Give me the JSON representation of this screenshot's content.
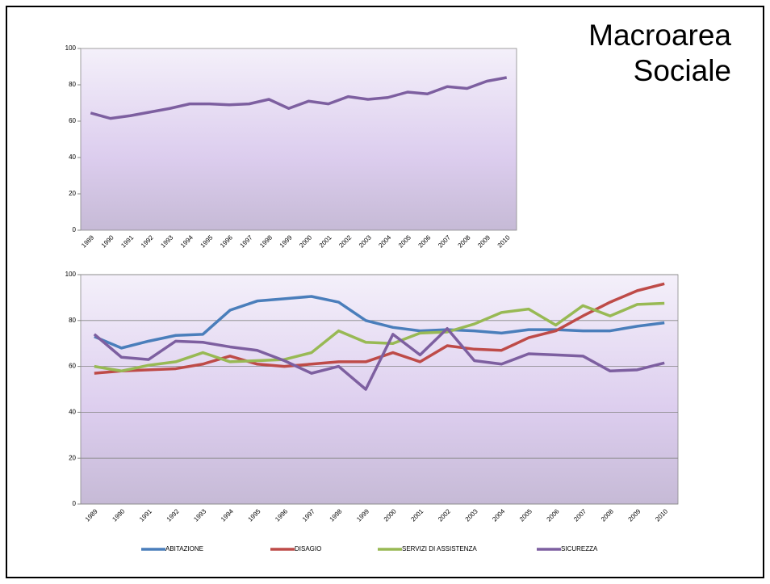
{
  "title": "Macroarea Sociale",
  "chart_data": [
    {
      "type": "line",
      "categories": [
        "1989",
        "1990",
        "1991",
        "1992",
        "1993",
        "1994",
        "1995",
        "1996",
        "1997",
        "1998",
        "1999",
        "2000",
        "2001",
        "2002",
        "2003",
        "2004",
        "2005",
        "2006",
        "2007",
        "2008",
        "2009",
        "2010"
      ],
      "values": [
        64.5,
        61.5,
        63,
        65,
        67,
        69.5,
        69.5,
        69,
        69.5,
        72,
        67,
        71,
        69.5,
        73.5,
        72,
        73,
        76,
        75,
        79,
        78,
        82,
        84
      ],
      "color": "#7d5fa0",
      "ylim": [
        0,
        100
      ],
      "yticks": [
        0,
        20,
        40,
        60,
        80,
        100
      ],
      "grid": false
    },
    {
      "type": "line",
      "categories": [
        "1989",
        "1990",
        "1991",
        "1992",
        "1993",
        "1994",
        "1995",
        "1996",
        "1997",
        "1998",
        "1999",
        "2000",
        "2001",
        "2002",
        "2003",
        "2004",
        "2005",
        "2006",
        "2007",
        "2008",
        "2009",
        "2010"
      ],
      "series": [
        {
          "name": "ABITAZIONE",
          "color": "#4a7ebb",
          "values": [
            73,
            68,
            71,
            73.5,
            74,
            84.5,
            88.5,
            89.5,
            90.5,
            88,
            80,
            77,
            75.5,
            76,
            75.5,
            74.5,
            76,
            76,
            75.5,
            75.5,
            77.5,
            79
          ]
        },
        {
          "name": "DISAGIO",
          "color": "#be4b48",
          "values": [
            57,
            58,
            58.5,
            59,
            61,
            64.5,
            61,
            60,
            61,
            62,
            62,
            66,
            62,
            69,
            67.5,
            67,
            72.5,
            75.5,
            82,
            88,
            93,
            96
          ]
        },
        {
          "name": "SERVIZI DI ASSISTENZA",
          "color": "#98b954",
          "values": [
            60,
            58,
            60.5,
            62,
            66,
            62,
            62.5,
            63,
            66,
            75.5,
            70.5,
            70,
            74.5,
            75,
            78.5,
            83.5,
            85,
            78,
            86.5,
            82,
            87,
            87.5
          ]
        },
        {
          "name": "SICUREZZA",
          "color": "#7d5fa0",
          "values": [
            74,
            64,
            63,
            71,
            70.5,
            68.5,
            67,
            62.5,
            57,
            60,
            50,
            74,
            65,
            76.5,
            62.5,
            61,
            65.5,
            65,
            64.5,
            58,
            58.5,
            61.5
          ]
        }
      ],
      "ylim": [
        0,
        100
      ],
      "yticks": [
        0,
        20,
        40,
        60,
        80,
        100
      ],
      "grid": true,
      "legend": "bottom"
    }
  ]
}
